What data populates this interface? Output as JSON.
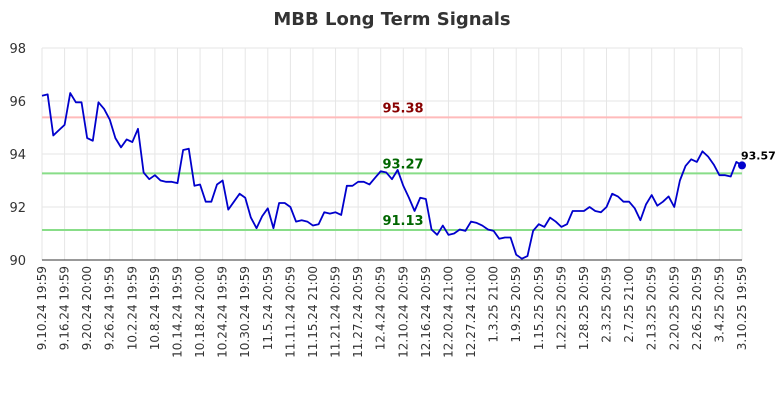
{
  "chart_data": {
    "type": "line",
    "title": "MBB Long Term Signals",
    "xlabel": "",
    "ylabel": "",
    "ylim": [
      90,
      98
    ],
    "yticks": [
      90,
      92,
      94,
      96,
      98
    ],
    "grid": true,
    "x_tick_labels": [
      "9.10.24 19:59",
      "9.16.24 19:59",
      "9.20.24 20:00",
      "9.26.24 19:59",
      "10.2.24 19:59",
      "10.8.24 19:59",
      "10.14.24 19:59",
      "10.18.24 20:00",
      "10.24.24 19:59",
      "10.30.24 19:59",
      "11.5.24 20:59",
      "11.11.24 20:59",
      "11.15.24 21:00",
      "11.21.24 20:59",
      "11.27.24 20:59",
      "12.4.24 20:59",
      "12.10.24 20:59",
      "12.16.24 20:59",
      "12.20.24 21:00",
      "12.27.24 21:00",
      "1.3.25 21:00",
      "1.9.25 20:59",
      "1.15.25 20:59",
      "1.22.25 20:59",
      "1.28.25 20:59",
      "2.3.25 20:59",
      "2.7.25 21:00",
      "2.13.25 20:59",
      "2.20.25 20:59",
      "2.26.25 20:59",
      "3.4.25 20:59",
      "3.10.25 19:59"
    ],
    "x_tick_index": [
      0,
      4,
      8,
      12,
      16,
      20,
      24,
      28,
      32,
      36,
      40,
      44,
      48,
      52,
      56,
      60,
      64,
      68,
      72,
      76,
      80,
      84,
      88,
      92,
      96,
      100,
      104,
      108,
      112,
      116,
      120,
      124
    ],
    "series": [
      {
        "color": "#0000cc",
        "values": [
          96.2,
          96.25,
          94.7,
          94.9,
          95.1,
          96.3,
          95.95,
          95.95,
          94.6,
          94.5,
          95.95,
          95.7,
          95.3,
          94.6,
          94.25,
          94.55,
          94.45,
          94.95,
          93.3,
          93.05,
          93.2,
          93.0,
          92.95,
          92.95,
          92.9,
          94.15,
          94.2,
          92.8,
          92.85,
          92.2,
          92.2,
          92.85,
          93.0,
          91.9,
          92.2,
          92.5,
          92.35,
          91.6,
          91.2,
          91.65,
          91.95,
          91.2,
          92.15,
          92.15,
          92.0,
          91.45,
          91.5,
          91.45,
          91.3,
          91.35,
          91.8,
          91.75,
          91.8,
          91.7,
          92.8,
          92.8,
          92.95,
          92.95,
          92.85,
          93.1,
          93.35,
          93.3,
          93.05,
          93.4,
          92.8,
          92.35,
          91.85,
          92.35,
          92.3,
          91.15,
          90.95,
          91.3,
          90.95,
          91.0,
          91.15,
          91.1,
          91.45,
          91.4,
          91.3,
          91.15,
          91.1,
          90.8,
          90.85,
          90.85,
          90.2,
          90.05,
          90.15,
          91.1,
          91.35,
          91.25,
          91.6,
          91.45,
          91.25,
          91.35,
          91.85,
          91.85,
          91.85,
          92.0,
          91.85,
          91.8,
          92.0,
          92.5,
          92.4,
          92.2,
          92.2,
          91.95,
          91.5,
          92.1,
          92.45,
          92.05,
          92.2,
          92.4,
          92.0,
          93.0,
          93.55,
          93.8,
          93.7,
          94.1,
          93.9,
          93.6,
          93.2,
          93.2,
          93.15,
          93.7,
          93.57
        ]
      }
    ],
    "last_value_label": "93.57",
    "signal_lines": [
      {
        "value": 95.38,
        "label": "95.38",
        "line_color": "#ffbbbb",
        "text_color": "#880000"
      },
      {
        "value": 93.27,
        "label": "93.27",
        "line_color": "#88dd88",
        "text_color": "#006600"
      },
      {
        "value": 91.13,
        "label": "91.13",
        "line_color": "#88dd88",
        "text_color": "#006600"
      }
    ]
  }
}
